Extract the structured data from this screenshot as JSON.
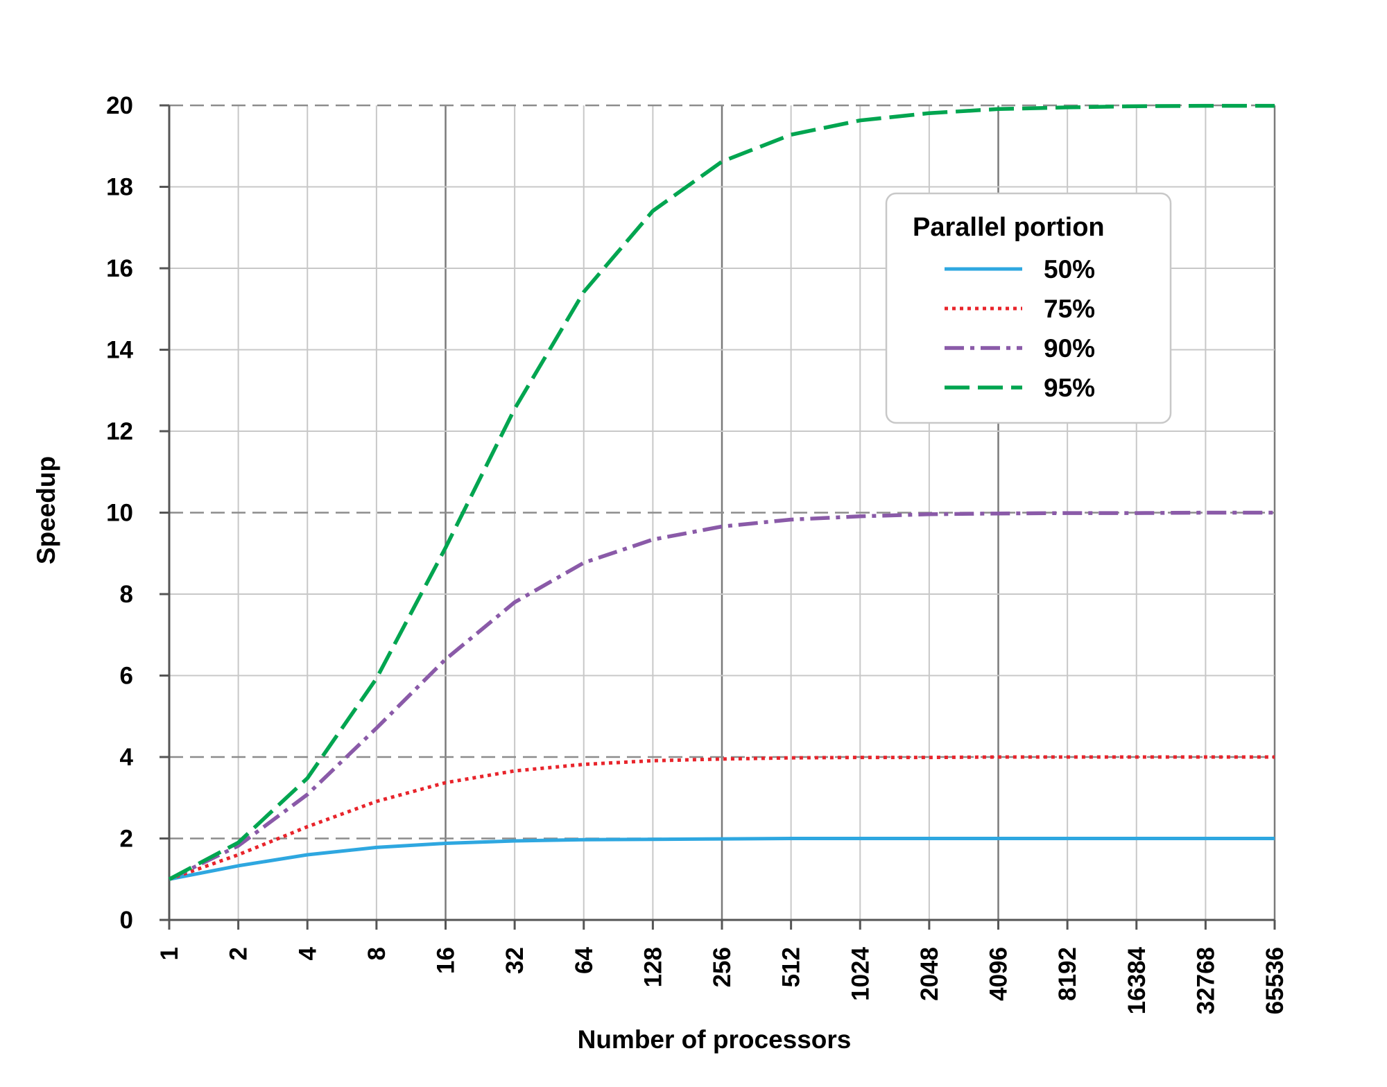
{
  "chart_data": {
    "type": "line",
    "title": "",
    "xlabel": "Number of processors",
    "ylabel": "Speedup",
    "x_scale": "log2",
    "x": [
      1,
      2,
      4,
      8,
      16,
      32,
      64,
      128,
      256,
      512,
      1024,
      2048,
      4096,
      8192,
      16384,
      32768,
      65536
    ],
    "x_tick_labels": [
      "1",
      "2",
      "4",
      "8",
      "16",
      "32",
      "64",
      "128",
      "256",
      "512",
      "1024",
      "2048",
      "4096",
      "8192",
      "16384",
      "32768",
      "65536"
    ],
    "y_ticks": [
      0,
      2,
      4,
      6,
      8,
      10,
      12,
      14,
      16,
      18,
      20
    ],
    "y_tick_labels": [
      "0",
      "2",
      "4",
      "6",
      "8",
      "10",
      "12",
      "14",
      "16",
      "18",
      "20"
    ],
    "ylim": [
      0,
      20
    ],
    "grid": true,
    "dashed_gridlines_y": [
      2,
      4,
      10,
      20
    ],
    "legend": {
      "title": "Parallel portion",
      "position": "top-right"
    },
    "series": [
      {
        "name": "50%",
        "color": "#2ea7e0",
        "style": "solid",
        "values": [
          1.0,
          1.33,
          1.6,
          1.78,
          1.88,
          1.94,
          1.97,
          1.98,
          1.99,
          2.0,
          2.0,
          2.0,
          2.0,
          2.0,
          2.0,
          2.0,
          2.0
        ]
      },
      {
        "name": "75%",
        "color": "#e8242b",
        "style": "dotted",
        "values": [
          1.0,
          1.6,
          2.29,
          2.91,
          3.37,
          3.66,
          3.82,
          3.91,
          3.95,
          3.98,
          3.99,
          3.99,
          4.0,
          4.0,
          4.0,
          4.0,
          4.0
        ]
      },
      {
        "name": "90%",
        "color": "#8a5aa8",
        "style": "dash-dot",
        "values": [
          1.0,
          1.82,
          3.08,
          4.71,
          6.4,
          7.8,
          8.77,
          9.34,
          9.66,
          9.83,
          9.91,
          9.96,
          9.98,
          9.99,
          9.99,
          10.0,
          10.0
        ]
      },
      {
        "name": "95%",
        "color": "#00a550",
        "style": "dashed",
        "values": [
          1.0,
          1.9,
          3.48,
          5.93,
          9.14,
          12.55,
          15.42,
          17.41,
          18.62,
          19.28,
          19.63,
          19.81,
          19.91,
          19.95,
          19.98,
          19.99,
          19.99
        ]
      }
    ]
  }
}
